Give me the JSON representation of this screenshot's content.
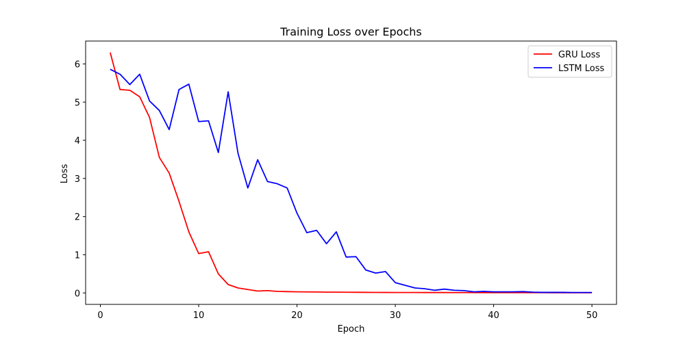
{
  "chart_data": {
    "type": "line",
    "title": "Training Loss over Epochs",
    "xlabel": "Epoch",
    "ylabel": "Loss",
    "xlim": [
      -1.5,
      52.5
    ],
    "ylim": [
      -0.3,
      6.6
    ],
    "xticks": [
      0,
      10,
      20,
      30,
      40,
      50
    ],
    "yticks": [
      0,
      1,
      2,
      3,
      4,
      5,
      6
    ],
    "legend_position": "top-right",
    "grid": false,
    "x": [
      1,
      2,
      3,
      4,
      5,
      6,
      7,
      8,
      9,
      10,
      11,
      12,
      13,
      14,
      15,
      16,
      17,
      18,
      19,
      20,
      21,
      22,
      23,
      24,
      25,
      26,
      27,
      28,
      29,
      30,
      31,
      32,
      33,
      34,
      35,
      36,
      37,
      38,
      39,
      40,
      41,
      42,
      43,
      44,
      45,
      46,
      47,
      48,
      49,
      50
    ],
    "series": [
      {
        "name": "GRU Loss",
        "color": "#ff0000",
        "values": [
          6.3,
          5.33,
          5.31,
          5.14,
          4.6,
          3.55,
          3.14,
          2.4,
          1.6,
          1.03,
          1.08,
          0.5,
          0.22,
          0.13,
          0.09,
          0.05,
          0.06,
          0.04,
          0.035,
          0.03,
          0.027,
          0.025,
          0.02,
          0.02,
          0.018,
          0.017,
          0.015,
          0.014,
          0.013,
          0.012,
          0.011,
          0.011,
          0.01,
          0.01,
          0.01,
          0.009,
          0.009,
          0.009,
          0.008,
          0.008,
          0.008,
          0.007,
          0.007,
          0.007,
          0.007,
          0.006,
          0.006,
          0.006,
          0.006,
          0.006
        ]
      },
      {
        "name": "LSTM Loss",
        "color": "#0000ff",
        "values": [
          5.86,
          5.73,
          5.46,
          5.73,
          5.03,
          4.78,
          4.28,
          5.33,
          5.47,
          4.49,
          4.51,
          3.68,
          5.27,
          3.66,
          2.75,
          3.49,
          2.92,
          2.86,
          2.75,
          2.09,
          1.58,
          1.64,
          1.29,
          1.6,
          0.94,
          0.95,
          0.6,
          0.52,
          0.56,
          0.27,
          0.2,
          0.13,
          0.11,
          0.07,
          0.1,
          0.07,
          0.06,
          0.03,
          0.04,
          0.03,
          0.03,
          0.03,
          0.035,
          0.02,
          0.015,
          0.015,
          0.015,
          0.012,
          0.012,
          0.012
        ]
      }
    ]
  }
}
